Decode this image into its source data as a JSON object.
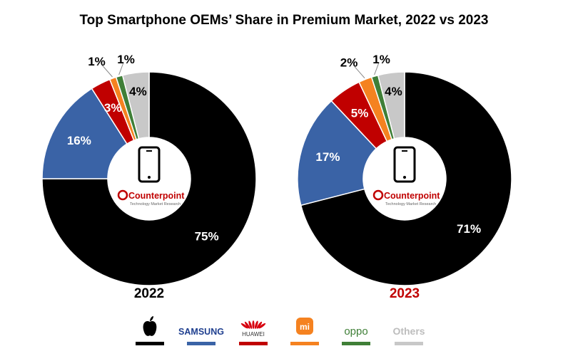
{
  "chart_data": {
    "type": "pie",
    "title": "Top Smartphone OEMs’ Share in Premium Market, 2022 vs 2023",
    "brand_colors": {
      "Apple": "#000000",
      "Samsung": "#3a63a6",
      "Huawei": "#c00000",
      "Xiaomi": "#f58220",
      "OPPO": "#3f7f37",
      "Others": "#c8c8c8"
    },
    "legend": {
      "placement": "bottom",
      "items": [
        {
          "name": "Apple",
          "icon": "apple-logo-icon",
          "color": "#000000"
        },
        {
          "name": "SAMSUNG",
          "color": "#3a63a6"
        },
        {
          "name": "HUAWEI",
          "icon": "huawei-logo-icon",
          "color": "#c00000"
        },
        {
          "name": "mi",
          "icon": "xiaomi-logo-icon",
          "color": "#f58220"
        },
        {
          "name": "oppo",
          "color": "#3f7f37"
        },
        {
          "name": "Others",
          "color": "#c8c8c8"
        }
      ]
    },
    "center_logo": {
      "brand": "Counterpoint",
      "tagline": "Technology Market Research",
      "icon": "smartphone-icon"
    },
    "charts": [
      {
        "year": "2022",
        "year_color": "#000000",
        "slices": [
          {
            "brand": "Apple",
            "value": 75,
            "label": "75%"
          },
          {
            "brand": "Samsung",
            "value": 16,
            "label": "16%"
          },
          {
            "brand": "Huawei",
            "value": 3,
            "label": "3%"
          },
          {
            "brand": "Xiaomi",
            "value": 1,
            "label": "1%"
          },
          {
            "brand": "OPPO",
            "value": 1,
            "label": "1%"
          },
          {
            "brand": "Others",
            "value": 4,
            "label": "4%"
          }
        ]
      },
      {
        "year": "2023",
        "year_color": "#c00000",
        "slices": [
          {
            "brand": "Apple",
            "value": 71,
            "label": "71%"
          },
          {
            "brand": "Samsung",
            "value": 17,
            "label": "17%"
          },
          {
            "brand": "Huawei",
            "value": 5,
            "label": "5%"
          },
          {
            "brand": "Xiaomi",
            "value": 2,
            "label": "2%"
          },
          {
            "brand": "OPPO",
            "value": 1,
            "label": "1%"
          },
          {
            "brand": "Others",
            "value": 4,
            "label": "4%"
          }
        ]
      }
    ]
  }
}
